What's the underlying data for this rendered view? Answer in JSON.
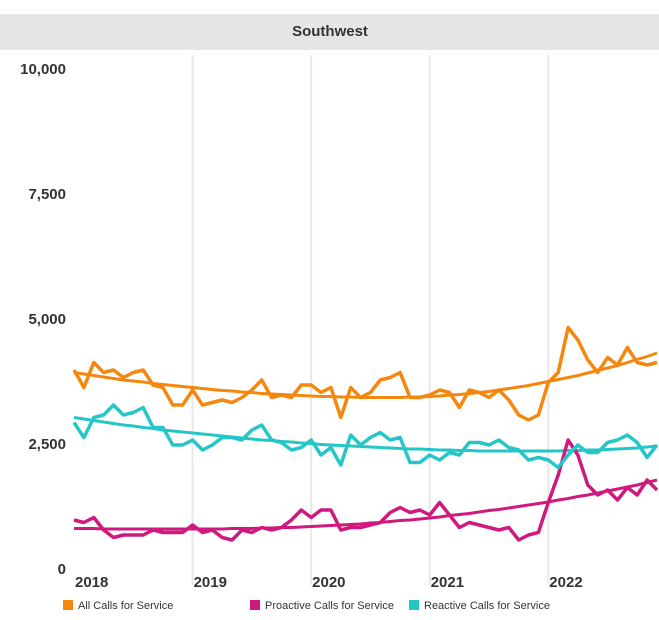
{
  "chart_data": {
    "type": "line",
    "title": "Southwest",
    "categories": [
      "2018",
      null,
      null,
      null,
      null,
      null,
      null,
      null,
      null,
      null,
      null,
      null,
      "2019",
      null,
      null,
      null,
      null,
      null,
      null,
      null,
      null,
      null,
      null,
      null,
      "2020",
      null,
      null,
      null,
      null,
      null,
      null,
      null,
      null,
      null,
      null,
      null,
      "2021",
      null,
      null,
      null,
      null,
      null,
      null,
      null,
      null,
      null,
      null,
      null,
      "2022",
      null,
      null,
      null,
      null,
      null,
      null,
      null,
      null,
      null,
      null,
      null
    ],
    "ylim": [
      -300,
      10300
    ],
    "yticks": [
      0,
      {
        "value": 2500,
        "label": "2,500"
      },
      {
        "value": 5000,
        "label": "5,000"
      },
      {
        "value": 7500,
        "label": "7,500"
      },
      {
        "value": 10000,
        "label": "10,000"
      }
    ],
    "grid": true,
    "series": [
      {
        "name": "All Calls for Service",
        "color": "#f5870f",
        "values": [
          4000,
          3650,
          4150,
          3950,
          4000,
          3850,
          3950,
          4000,
          3700,
          3650,
          3300,
          3300,
          3600,
          3300,
          3350,
          3400,
          3350,
          3450,
          3600,
          3800,
          3450,
          3500,
          3450,
          3700,
          3700,
          3550,
          3650,
          3050,
          3650,
          3450,
          3550,
          3800,
          3850,
          3950,
          3450,
          3450,
          3500,
          3600,
          3550,
          3250,
          3600,
          3550,
          3450,
          3600,
          3400,
          3100,
          3000,
          3100,
          3750,
          3950,
          4850,
          4600,
          4200,
          3950,
          4250,
          4100,
          4450,
          4150,
          4100,
          4150
        ],
        "trend": [
          3950,
          3920,
          3890,
          3860,
          3830,
          3800,
          3780,
          3760,
          3730,
          3710,
          3690,
          3670,
          3650,
          3630,
          3610,
          3590,
          3580,
          3560,
          3550,
          3530,
          3520,
          3510,
          3500,
          3490,
          3480,
          3470,
          3470,
          3460,
          3460,
          3450,
          3450,
          3450,
          3450,
          3450,
          3460,
          3460,
          3470,
          3480,
          3500,
          3510,
          3530,
          3550,
          3570,
          3600,
          3630,
          3660,
          3690,
          3730,
          3770,
          3810,
          3850,
          3890,
          3940,
          3990,
          4040,
          4090,
          4150,
          4210,
          4270,
          4340
        ]
      },
      {
        "name": "Proactive Calls for Service",
        "color": "#d0197e",
        "values": [
          1000,
          950,
          1050,
          800,
          650,
          700,
          700,
          700,
          800,
          750,
          750,
          750,
          900,
          750,
          800,
          650,
          600,
          800,
          750,
          850,
          800,
          850,
          1000,
          1200,
          1050,
          1200,
          1200,
          800,
          850,
          850,
          900,
          950,
          1150,
          1250,
          1150,
          1200,
          1100,
          1350,
          1100,
          850,
          950,
          900,
          850,
          800,
          850,
          600,
          700,
          750,
          1350,
          1900,
          2600,
          2300,
          1700,
          1500,
          1600,
          1400,
          1650,
          1500,
          1800,
          1600
        ],
        "trend": [
          830,
          830,
          830,
          820,
          820,
          820,
          820,
          820,
          820,
          820,
          820,
          820,
          820,
          820,
          820,
          820,
          830,
          830,
          830,
          840,
          840,
          850,
          850,
          860,
          870,
          880,
          890,
          900,
          910,
          920,
          940,
          950,
          970,
          990,
          1000,
          1020,
          1040,
          1060,
          1090,
          1110,
          1130,
          1160,
          1190,
          1210,
          1240,
          1270,
          1300,
          1330,
          1360,
          1400,
          1430,
          1470,
          1500,
          1540,
          1580,
          1620,
          1660,
          1700,
          1750,
          1800
        ]
      },
      {
        "name": "Reactive Calls for Service",
        "color": "#24c6c8",
        "values": [
          2950,
          2650,
          3050,
          3100,
          3300,
          3100,
          3150,
          3250,
          2850,
          2850,
          2500,
          2500,
          2600,
          2400,
          2500,
          2650,
          2650,
          2600,
          2800,
          2900,
          2600,
          2550,
          2400,
          2450,
          2600,
          2300,
          2450,
          2100,
          2700,
          2500,
          2650,
          2750,
          2600,
          2650,
          2150,
          2150,
          2300,
          2200,
          2350,
          2300,
          2550,
          2550,
          2500,
          2600,
          2450,
          2400,
          2200,
          2250,
          2200,
          2050,
          2300,
          2500,
          2350,
          2350,
          2550,
          2600,
          2700,
          2550,
          2250,
          2500
        ],
        "trend": [
          3050,
          3020,
          2990,
          2960,
          2930,
          2900,
          2880,
          2850,
          2830,
          2800,
          2780,
          2760,
          2740,
          2720,
          2700,
          2680,
          2660,
          2640,
          2620,
          2600,
          2590,
          2570,
          2560,
          2540,
          2530,
          2510,
          2500,
          2490,
          2480,
          2470,
          2460,
          2450,
          2440,
          2430,
          2420,
          2420,
          2410,
          2400,
          2400,
          2390,
          2390,
          2380,
          2380,
          2380,
          2380,
          2380,
          2380,
          2380,
          2380,
          2380,
          2390,
          2390,
          2400,
          2400,
          2410,
          2420,
          2430,
          2440,
          2460,
          2480
        ]
      }
    ]
  }
}
